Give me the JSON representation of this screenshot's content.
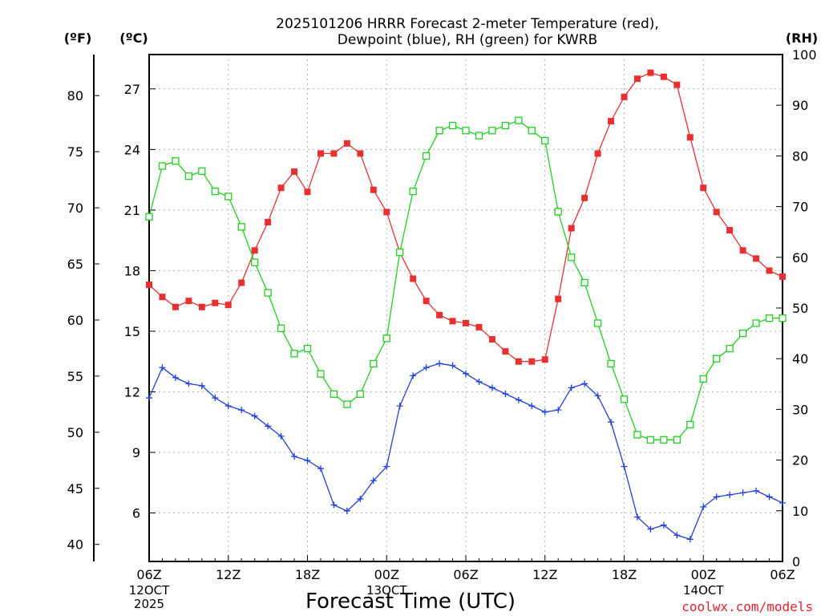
{
  "chart_data": {
    "type": "line",
    "title_lines": [
      "2025101206 HRRR Forecast 2-meter Temperature (red),",
      "Dewpoint (blue), RH (green) for KWRB"
    ],
    "xlabel": "Forecast Time (UTC)",
    "credit": "coolwx.com/models",
    "x_hours": [
      0,
      1,
      2,
      3,
      4,
      5,
      6,
      7,
      8,
      9,
      10,
      11,
      12,
      13,
      14,
      15,
      16,
      17,
      18,
      19,
      20,
      21,
      22,
      23,
      24,
      25,
      26,
      27,
      28,
      29,
      30,
      31,
      32,
      33,
      34,
      35,
      36,
      37,
      38,
      39,
      40,
      41,
      42,
      43,
      44,
      45,
      46,
      47,
      48
    ],
    "x_ticks": [
      {
        "hour": 0,
        "label": "06Z"
      },
      {
        "hour": 6,
        "label": "12Z"
      },
      {
        "hour": 12,
        "label": "18Z"
      },
      {
        "hour": 18,
        "label": "00Z"
      },
      {
        "hour": 24,
        "label": "06Z"
      },
      {
        "hour": 30,
        "label": "12Z"
      },
      {
        "hour": 36,
        "label": "18Z"
      },
      {
        "hour": 42,
        "label": "00Z"
      },
      {
        "hour": 48,
        "label": "06Z"
      }
    ],
    "date_labels": [
      {
        "hour": 0,
        "lines": [
          "12OCT",
          "2025"
        ]
      },
      {
        "hour": 18,
        "lines": [
          "13OCT"
        ]
      },
      {
        "hour": 42,
        "lines": [
          "14OCT"
        ]
      }
    ],
    "axes": {
      "celsius": {
        "unit_label": "(ºC)",
        "range": [
          3.6,
          28.7
        ],
        "ticks": [
          6,
          9,
          12,
          15,
          18,
          21,
          24,
          27
        ]
      },
      "fahrenheit": {
        "unit_label": "(ºF)",
        "ticks": [
          40,
          45,
          50,
          55,
          60,
          65,
          70,
          75,
          80
        ]
      },
      "rh": {
        "unit_label": "(RH)",
        "range": [
          0,
          100
        ],
        "ticks": [
          0,
          10,
          20,
          30,
          40,
          50,
          60,
          70,
          80,
          90,
          100
        ]
      }
    },
    "series": [
      {
        "name": "Temperature",
        "color": "#e83030",
        "marker": "filled-square",
        "axis": "celsius",
        "values": [
          17.3,
          16.7,
          16.2,
          16.5,
          16.2,
          16.4,
          16.3,
          17.4,
          19.0,
          20.4,
          22.1,
          22.9,
          21.9,
          23.8,
          23.8,
          24.3,
          23.8,
          22.0,
          20.9,
          18.9,
          17.6,
          16.5,
          15.8,
          15.5,
          15.4,
          15.2,
          14.6,
          14.0,
          13.5,
          13.5,
          13.6,
          16.6,
          20.1,
          21.6,
          23.8,
          25.4,
          26.6,
          27.5,
          27.8,
          27.6,
          27.2,
          24.6,
          22.1,
          20.9,
          20.0,
          19.0,
          18.6,
          18.0,
          17.7
        ]
      },
      {
        "name": "Dewpoint",
        "color": "#2040e0",
        "marker": "plus",
        "axis": "celsius",
        "values": [
          11.7,
          13.2,
          12.7,
          12.4,
          12.3,
          11.7,
          11.3,
          11.1,
          10.8,
          10.3,
          9.8,
          8.8,
          8.6,
          8.2,
          6.4,
          6.1,
          6.7,
          7.6,
          8.3,
          11.3,
          12.8,
          13.2,
          13.4,
          13.3,
          12.9,
          12.5,
          12.2,
          11.9,
          11.6,
          11.3,
          11.0,
          11.1,
          12.2,
          12.4,
          11.8,
          10.5,
          8.3,
          5.8,
          5.2,
          5.4,
          4.9,
          4.7,
          6.3,
          6.8,
          6.9,
          7.0,
          7.1,
          6.8,
          6.5
        ]
      },
      {
        "name": "RH",
        "color": "#20d020",
        "marker": "open-square",
        "axis": "rh",
        "values": [
          68,
          78,
          79,
          76,
          77,
          73,
          72,
          66,
          59,
          53,
          46,
          41,
          42,
          37,
          33,
          31,
          33,
          39,
          44,
          61,
          73,
          80,
          85,
          86,
          85,
          84,
          85,
          86,
          87,
          85,
          83,
          69,
          60,
          55,
          47,
          39,
          32,
          25,
          24,
          24,
          24,
          27,
          36,
          40,
          42,
          45,
          47,
          48,
          48
        ]
      }
    ]
  }
}
